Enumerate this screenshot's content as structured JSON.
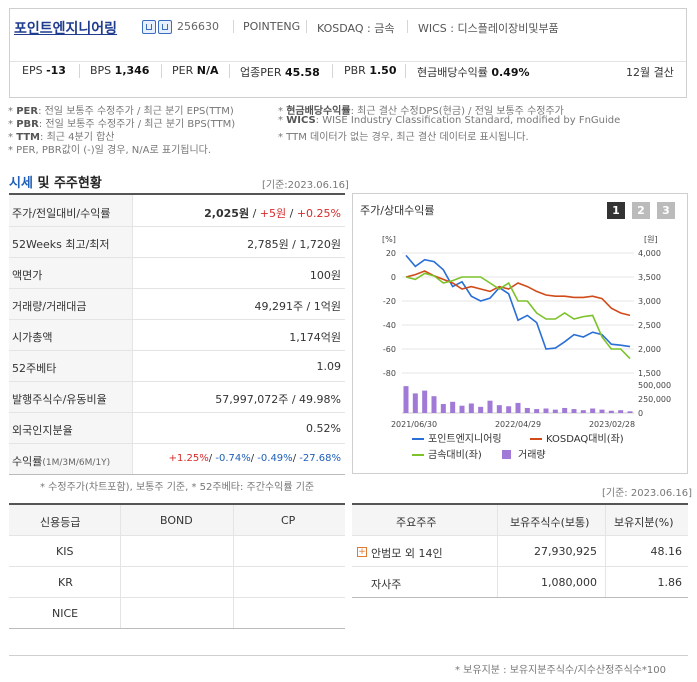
{
  "header": {
    "company_name": "포인트엔지니어링",
    "stock_code": "256630",
    "english_name": "POINTENG",
    "market": "KOSDAQ : 금속",
    "wics": "WICS : 디스플레이장비및부품",
    "metrics": [
      {
        "label": "EPS",
        "value": "-13"
      },
      {
        "label": "BPS",
        "value": "1,346"
      },
      {
        "label": "PER",
        "value": "N/A"
      },
      {
        "label": "업종PER",
        "value": "45.58"
      },
      {
        "label": "PBR",
        "value": "1.50"
      },
      {
        "label": "현금배당수익률",
        "value": "0.49%"
      }
    ],
    "fiscal": "12월 결산"
  },
  "notes": {
    "per_label": "PER",
    "per_text": ": 전일 보통주 수정주가 / 최근 분기 EPS(TTM)",
    "pbr_label": "PBR",
    "pbr_text": ": 전일 보통주 수정주가 / 최근 분기 BPS(TTM)",
    "ttm_label": "TTM",
    "ttm_text": ": 최근 4분기 합산",
    "na_text": "* PER, PBR값이 (-)일 경우, N/A로 표기됩니다.",
    "div_label": "현금배당수익률",
    "div_text": ": 최근 결산 수정DPS(현금) / 전일 보통주 수정주가",
    "wics_label": "WICS",
    "wics_text": ": WISE Industry Classification Standard, modified by FnGuide",
    "ttm_note": "* TTM 데이터가 없는 경우, 최근 결산 데이터로 표시됩니다."
  },
  "market_section": {
    "title_a": "시세",
    "title_b": "및 주주현황",
    "basis": "[기준:2023.06.16]",
    "rows": [
      {
        "label": "주가/전일대비/수익률",
        "v1": "2,025원",
        "v2": "+5원",
        "v3": "+0.25%"
      },
      {
        "label": "52Weeks 최고/최저",
        "value": "2,785원 / 1,720원"
      },
      {
        "label": "액면가",
        "value": "100원"
      },
      {
        "label": "거래량/거래대금",
        "value": "49,291주 / 1억원"
      },
      {
        "label": "시가총액",
        "value": "1,174억원"
      },
      {
        "label": "52주베타",
        "value": "1.09"
      },
      {
        "label": "발행주식수/유동비율",
        "value": "57,997,072주 / 49.98%"
      },
      {
        "label": "외국인지분율",
        "value": "0.52%"
      },
      {
        "label": "수익률",
        "sub": "(1M/3M/6M/1Y)",
        "r1": "+1.25%",
        "r2": "-0.74%",
        "r3": "-0.49%",
        "r4": "-27.68%"
      }
    ],
    "footnote": "* 수정주가(차트포함), 보통주 기준, * 52주베타: 주간수익률 기준"
  },
  "chart": {
    "title": "주가/상대수익률",
    "pages": [
      "1",
      "2",
      "3"
    ],
    "active_page": "1",
    "left_unit": "[%]",
    "right_unit": "[원]",
    "legend": [
      "포인트엔지니어링",
      "KOSDAQ대비(좌)",
      "금속대비(좌)",
      "거래량"
    ],
    "colors": {
      "stock": "#2a6fd6",
      "kosdaq": "#d14a1a",
      "metal": "#7cc22a",
      "volume": "#a07ad6"
    }
  },
  "chart_data": {
    "type": "line",
    "x_ticks": [
      "2021/06/30",
      "2022/04/29",
      "2023/02/28"
    ],
    "y_left_ticks": [
      "20",
      "0",
      "-20",
      "-40",
      "-60",
      "-80"
    ],
    "y_left_range": [
      -80,
      20
    ],
    "y_right_ticks": [
      "4,000",
      "3,500",
      "3,000",
      "2,500",
      "2,000",
      "1,500"
    ],
    "y_right_range": [
      1500,
      4000
    ],
    "volume_ticks": [
      "500,000",
      "250,000",
      "0"
    ],
    "volume_range": [
      0,
      500000
    ],
    "series": [
      {
        "name": "포인트엔지니어링",
        "axis": "right",
        "values": [
          3950,
          3720,
          3860,
          3820,
          3650,
          3300,
          3400,
          3100,
          3000,
          3060,
          3280,
          3150,
          2600,
          2700,
          2550,
          2000,
          2020,
          2150,
          2300,
          2250,
          2350,
          2300,
          2100,
          2080,
          2050
        ]
      },
      {
        "name": "KOSDAQ대비(좌)",
        "axis": "left",
        "values": [
          0,
          2,
          5,
          1,
          -2,
          -5,
          -10,
          -8,
          -10,
          -12,
          -8,
          -10,
          -5,
          -8,
          -12,
          -15,
          -16,
          -16,
          -17,
          -17,
          -16,
          -18,
          -26,
          -30,
          -32
        ]
      },
      {
        "name": "금속대비(좌)",
        "axis": "left",
        "values": [
          0,
          -2,
          3,
          1,
          -5,
          -3,
          0,
          0,
          0,
          -5,
          -10,
          -5,
          -20,
          -20,
          -30,
          -35,
          -35,
          -30,
          -35,
          -33,
          -32,
          -50,
          -60,
          -60,
          -68
        ]
      },
      {
        "name": "거래량",
        "axis": "volume",
        "type": "bar",
        "values": [
          480000,
          350000,
          400000,
          300000,
          160000,
          200000,
          130000,
          170000,
          110000,
          220000,
          140000,
          120000,
          180000,
          90000,
          70000,
          80000,
          60000,
          90000,
          70000,
          50000,
          80000,
          60000,
          40000,
          50000,
          30000
        ]
      }
    ]
  },
  "bottom_left": {
    "headers": [
      "신용등급",
      "BOND",
      "CP"
    ],
    "rows": [
      "KIS",
      "KR",
      "NICE"
    ]
  },
  "bottom_right": {
    "basis": "[기준: 2023.06.16]",
    "headers": [
      "주요주주",
      "보유주식수(보통)",
      "보유지분(%)"
    ],
    "rows": [
      {
        "name": "안범모 외 14인",
        "shares": "27,930,925",
        "pct": "48.16",
        "expandable": true
      },
      {
        "name": "자사주",
        "shares": "1,080,000",
        "pct": "1.86",
        "expandable": false
      }
    ],
    "footnote": "* 보유지분 : 보유지분주식수/지수산정주식수*100"
  }
}
